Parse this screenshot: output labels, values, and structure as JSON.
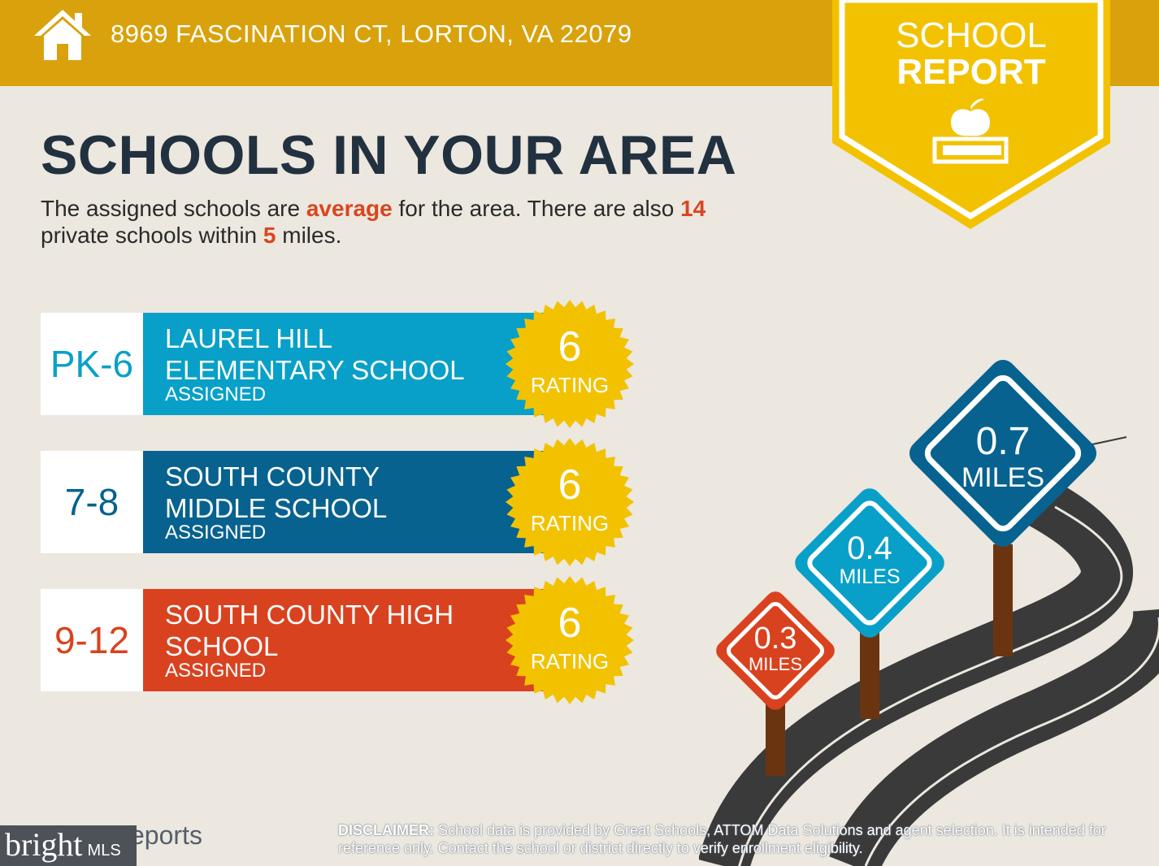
{
  "header": {
    "address": "8969 FASCINATION CT, LORTON, VA 22079",
    "home_icon": "house-icon",
    "bg_color": "#d9a20c"
  },
  "badge": {
    "line1": "SCHOOL",
    "line2": "REPORT",
    "icon": "apple-on-book-icon",
    "color": "#f2c200"
  },
  "heading": "SCHOOLS IN YOUR AREA",
  "intro": {
    "part1": "The assigned schools are ",
    "quality": "average",
    "part2": " for the area. There are also ",
    "private_count": "14",
    "part3": " private schools within ",
    "radius": "5",
    "part4": " miles."
  },
  "schools": [
    {
      "grades": "PK-6",
      "name_line1": "LAUREL HILL",
      "name_line2": "ELEMENTARY SCHOOL",
      "status": "ASSIGNED",
      "rating": "6",
      "rating_label": "RATING",
      "color": "#08a0c8"
    },
    {
      "grades": "7-8",
      "name_line1": "SOUTH COUNTY",
      "name_line2": "MIDDLE SCHOOL",
      "status": "ASSIGNED",
      "rating": "6",
      "rating_label": "RATING",
      "color": "#07628f"
    },
    {
      "grades": "9-12",
      "name_line1": "SOUTH COUNTY HIGH",
      "name_line2": "SCHOOL",
      "status": "ASSIGNED",
      "rating": "6",
      "rating_label": "RATING",
      "color": "#d9421f"
    }
  ],
  "signs": [
    {
      "distance": "0.3",
      "unit": "MILES",
      "color": "#d9421f"
    },
    {
      "distance": "0.4",
      "unit": "MILES",
      "color": "#08a0c8"
    },
    {
      "distance": "0.7",
      "unit": "MILES",
      "color": "#07628f"
    }
  ],
  "footer": {
    "brand_partial": "eports",
    "disclaimer_label": "DISCLAIMER:",
    "disclaimer_text": " School data is provided by Great Schools, ATTOM Data Solutions and agent selection. It is intended for reference only. Contact the school or district directly to verify enrollment eligibility.",
    "mls_word": "bright",
    "mls_suffix": "MLS"
  }
}
